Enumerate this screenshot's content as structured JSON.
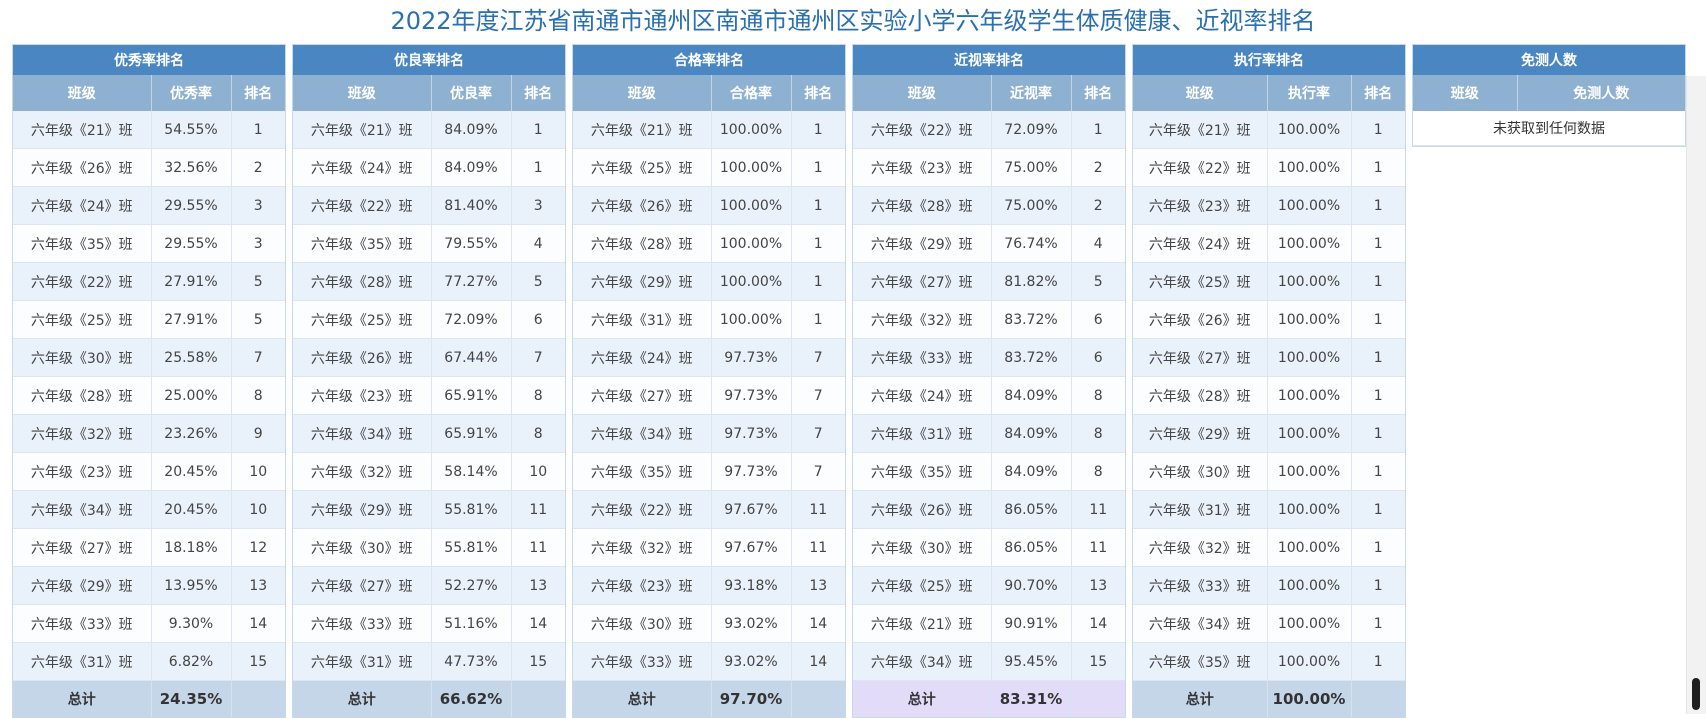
{
  "page": {
    "title": "2022年度江苏省南通市通州区南通市通州区实验小学六年级学生体质健康、近视率排名"
  },
  "panels": [
    {
      "title": "优秀率排名",
      "headers": [
        "班级",
        "优秀率",
        "排名"
      ],
      "rows": [
        [
          "六年级《21》班",
          "54.55%",
          "1"
        ],
        [
          "六年级《26》班",
          "32.56%",
          "2"
        ],
        [
          "六年级《24》班",
          "29.55%",
          "3"
        ],
        [
          "六年级《35》班",
          "29.55%",
          "3"
        ],
        [
          "六年级《22》班",
          "27.91%",
          "5"
        ],
        [
          "六年级《25》班",
          "27.91%",
          "5"
        ],
        [
          "六年级《30》班",
          "25.58%",
          "7"
        ],
        [
          "六年级《28》班",
          "25.00%",
          "8"
        ],
        [
          "六年级《32》班",
          "23.26%",
          "9"
        ],
        [
          "六年级《23》班",
          "20.45%",
          "10"
        ],
        [
          "六年级《34》班",
          "20.45%",
          "10"
        ],
        [
          "六年级《27》班",
          "18.18%",
          "12"
        ],
        [
          "六年级《29》班",
          "13.95%",
          "13"
        ],
        [
          "六年级《33》班",
          "9.30%",
          "14"
        ],
        [
          "六年级《31》班",
          "6.82%",
          "15"
        ]
      ],
      "total_label": "总计",
      "total_value": "24.35%"
    },
    {
      "title": "优良率排名",
      "headers": [
        "班级",
        "优良率",
        "排名"
      ],
      "rows": [
        [
          "六年级《21》班",
          "84.09%",
          "1"
        ],
        [
          "六年级《24》班",
          "84.09%",
          "1"
        ],
        [
          "六年级《22》班",
          "81.40%",
          "3"
        ],
        [
          "六年级《35》班",
          "79.55%",
          "4"
        ],
        [
          "六年级《28》班",
          "77.27%",
          "5"
        ],
        [
          "六年级《25》班",
          "72.09%",
          "6"
        ],
        [
          "六年级《26》班",
          "67.44%",
          "7"
        ],
        [
          "六年级《23》班",
          "65.91%",
          "8"
        ],
        [
          "六年级《34》班",
          "65.91%",
          "8"
        ],
        [
          "六年级《32》班",
          "58.14%",
          "10"
        ],
        [
          "六年级《29》班",
          "55.81%",
          "11"
        ],
        [
          "六年级《30》班",
          "55.81%",
          "11"
        ],
        [
          "六年级《27》班",
          "52.27%",
          "13"
        ],
        [
          "六年级《33》班",
          "51.16%",
          "14"
        ],
        [
          "六年级《31》班",
          "47.73%",
          "15"
        ]
      ],
      "total_label": "总计",
      "total_value": "66.62%"
    },
    {
      "title": "合格率排名",
      "headers": [
        "班级",
        "合格率",
        "排名"
      ],
      "rows": [
        [
          "六年级《21》班",
          "100.00%",
          "1"
        ],
        [
          "六年级《25》班",
          "100.00%",
          "1"
        ],
        [
          "六年级《26》班",
          "100.00%",
          "1"
        ],
        [
          "六年级《28》班",
          "100.00%",
          "1"
        ],
        [
          "六年级《29》班",
          "100.00%",
          "1"
        ],
        [
          "六年级《31》班",
          "100.00%",
          "1"
        ],
        [
          "六年级《24》班",
          "97.73%",
          "7"
        ],
        [
          "六年级《27》班",
          "97.73%",
          "7"
        ],
        [
          "六年级《34》班",
          "97.73%",
          "7"
        ],
        [
          "六年级《35》班",
          "97.73%",
          "7"
        ],
        [
          "六年级《22》班",
          "97.67%",
          "11"
        ],
        [
          "六年级《32》班",
          "97.67%",
          "11"
        ],
        [
          "六年级《23》班",
          "93.18%",
          "13"
        ],
        [
          "六年级《30》班",
          "93.02%",
          "14"
        ],
        [
          "六年级《33》班",
          "93.02%",
          "14"
        ]
      ],
      "total_label": "总计",
      "total_value": "97.70%"
    },
    {
      "title": "近视率排名",
      "headers": [
        "班级",
        "近视率",
        "排名"
      ],
      "rows": [
        [
          "六年级《22》班",
          "72.09%",
          "1"
        ],
        [
          "六年级《23》班",
          "75.00%",
          "2"
        ],
        [
          "六年级《28》班",
          "75.00%",
          "2"
        ],
        [
          "六年级《29》班",
          "76.74%",
          "4"
        ],
        [
          "六年级《27》班",
          "81.82%",
          "5"
        ],
        [
          "六年级《32》班",
          "83.72%",
          "6"
        ],
        [
          "六年级《33》班",
          "83.72%",
          "6"
        ],
        [
          "六年级《24》班",
          "84.09%",
          "8"
        ],
        [
          "六年级《31》班",
          "84.09%",
          "8"
        ],
        [
          "六年级《35》班",
          "84.09%",
          "8"
        ],
        [
          "六年级《26》班",
          "86.05%",
          "11"
        ],
        [
          "六年级《30》班",
          "86.05%",
          "11"
        ],
        [
          "六年级《25》班",
          "90.70%",
          "13"
        ],
        [
          "六年级《21》班",
          "90.91%",
          "14"
        ],
        [
          "六年级《34》班",
          "95.45%",
          "15"
        ]
      ],
      "total_label": "总计",
      "total_value": "83.31%"
    },
    {
      "title": "执行率排名",
      "headers": [
        "班级",
        "执行率",
        "排名"
      ],
      "rows": [
        [
          "六年级《21》班",
          "100.00%",
          "1"
        ],
        [
          "六年级《22》班",
          "100.00%",
          "1"
        ],
        [
          "六年级《23》班",
          "100.00%",
          "1"
        ],
        [
          "六年级《24》班",
          "100.00%",
          "1"
        ],
        [
          "六年级《25》班",
          "100.00%",
          "1"
        ],
        [
          "六年级《26》班",
          "100.00%",
          "1"
        ],
        [
          "六年级《27》班",
          "100.00%",
          "1"
        ],
        [
          "六年级《28》班",
          "100.00%",
          "1"
        ],
        [
          "六年级《29》班",
          "100.00%",
          "1"
        ],
        [
          "六年级《30》班",
          "100.00%",
          "1"
        ],
        [
          "六年级《31》班",
          "100.00%",
          "1"
        ],
        [
          "六年级《32》班",
          "100.00%",
          "1"
        ],
        [
          "六年级《33》班",
          "100.00%",
          "1"
        ],
        [
          "六年级《34》班",
          "100.00%",
          "1"
        ],
        [
          "六年级《35》班",
          "100.00%",
          "1"
        ]
      ],
      "total_label": "总计",
      "total_value": "100.00%"
    }
  ],
  "exempt": {
    "title": "免测人数",
    "headers": [
      "班级",
      "免测人数"
    ],
    "empty_text": "未获取到任何数据"
  }
}
